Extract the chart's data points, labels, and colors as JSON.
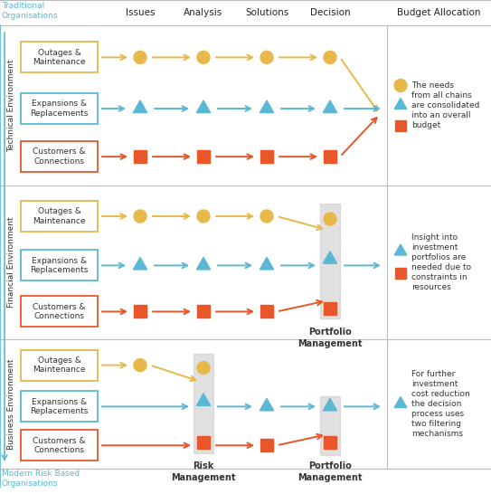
{
  "title_top": "Traditional\nOrganisations",
  "title_bottom": "Modern Risk Based\nOrganisations",
  "col_headers": [
    "Issues",
    "Analysis",
    "Solutions",
    "Decision"
  ],
  "budget_header": "Budget Allocation",
  "env_labels": [
    "Technical Environment",
    "Financial Environment",
    "Business Environment"
  ],
  "budget_texts": [
    "The needs\nfrom all chains\nare consolidated\ninto an overall\nbudget",
    "Insight into\ninvestment\nportfolios are\nneeded due to\nconstraints in\nresources",
    "For further\ninvestment\ncost reduction\nthe decision\nprocess uses\ntwo filtering\nmechanisms"
  ],
  "color_circle": "#E8B84B",
  "color_triangle": "#5BB8D4",
  "color_square": "#E8562A",
  "label_border_yellow": "#E8B84B",
  "label_border_cyan": "#5BB8D4",
  "label_border_red": "#E8562A",
  "bg_gray": "#CCCCCC",
  "text_color_dark": "#333333",
  "text_color_cyan": "#5BB8D4",
  "grid_color": "#BBBBBB",
  "figw": 5.43,
  "figh": 5.46,
  "dpi": 100
}
